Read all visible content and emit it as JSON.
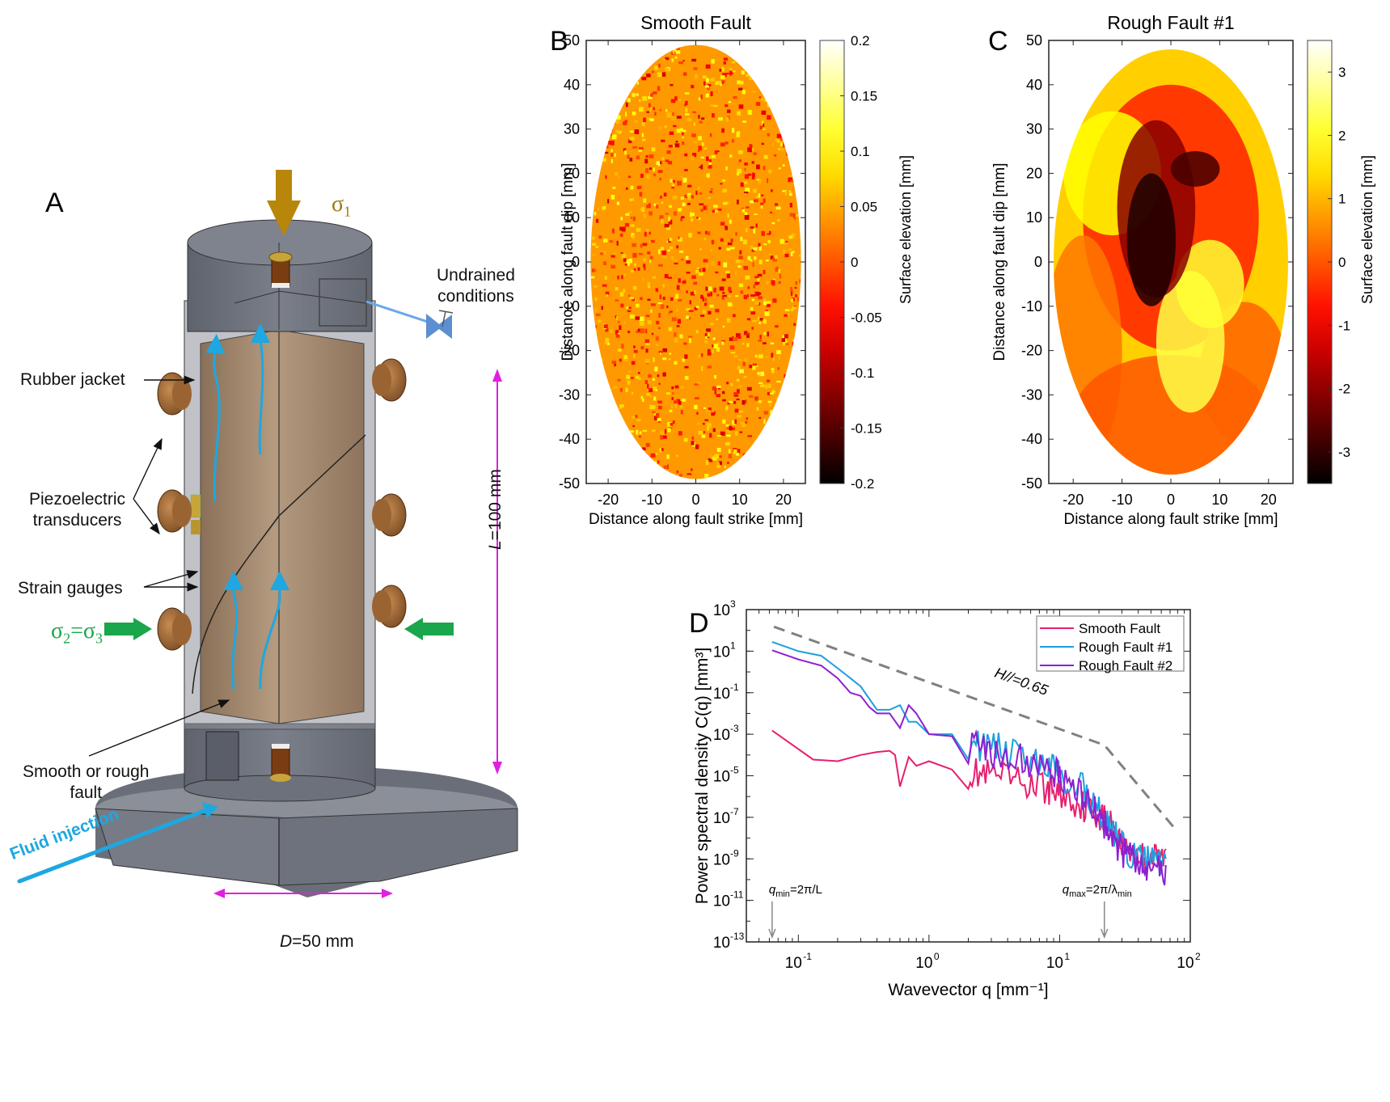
{
  "figure": {
    "panels": [
      "A",
      "B",
      "C",
      "D"
    ]
  },
  "panel_a": {
    "letter": "A",
    "sigma1_symbol": "σ",
    "sigma1_sub": "1",
    "sigma23_text": "σ",
    "sigma23_sub2": "2",
    "sigma23_eq": "=σ",
    "sigma23_sub3": "3",
    "undrained_line1": "Undrained",
    "undrained_line2": "conditions",
    "rubber_jacket": "Rubber jacket",
    "piezo_line1": "Piezoelectric",
    "piezo_line2": "transducers",
    "strain_gauges": "Strain gauges",
    "fault_line1": "Smooth or rough",
    "fault_line2": "fault",
    "fluid_injection": "Fluid injection",
    "length_label_var": "L",
    "length_label_val": "=100 mm",
    "diameter_label_var": "D",
    "diameter_label_val": "=50 mm",
    "colors": {
      "sigma1": "#b8860b",
      "sigma23": "#1aa64a",
      "fluid": "#1ea7e1",
      "dimension": "#e020e0",
      "rock": "#a08466",
      "steel": "#707480"
    }
  },
  "chart_data": [
    {
      "type": "heatmap",
      "panel": "B",
      "title": "Smooth Fault",
      "xlabel": "Distance along fault strike [mm]",
      "ylabel": "Distance along fault dip [mm]",
      "xlim": [
        -25,
        25
      ],
      "ylim": [
        -50,
        50
      ],
      "xticks": [
        -20,
        -10,
        0,
        10,
        20
      ],
      "yticks": [
        -50,
        -40,
        -30,
        -20,
        -10,
        0,
        10,
        20,
        30,
        40,
        50
      ],
      "colorbar": {
        "label": "Surface elevation [mm]",
        "range": [
          -0.2,
          0.2
        ],
        "ticks": [
          "0.2",
          "0.15",
          "0.1",
          "0.05",
          "0",
          "-0.05",
          "-0.1",
          "-0.15",
          "-0.2"
        ],
        "colormap": "hot"
      },
      "shape": "ellipse",
      "ellipse_semi_axes_mm": [
        24,
        49
      ],
      "description": "Fine-grained random texture, mostly orange/yellow (~0 to 0.1 mm) with scattered dark red spots"
    },
    {
      "type": "heatmap",
      "panel": "C",
      "title": "Rough Fault #1",
      "xlabel": "Distance along fault strike [mm]",
      "ylabel": "Distance along fault dip [mm]",
      "xlim": [
        -25,
        25
      ],
      "ylim": [
        -50,
        50
      ],
      "xticks": [
        -20,
        -10,
        0,
        10,
        20
      ],
      "yticks": [
        -50,
        -40,
        -30,
        -20,
        -10,
        0,
        10,
        20,
        30,
        40,
        50
      ],
      "colorbar": {
        "label": "Surface elevation [mm]",
        "range": [
          -3.5,
          3.5
        ],
        "ticks": [
          "3",
          "2",
          "1",
          "0",
          "-1",
          "-2",
          "-3"
        ],
        "colormap": "hot"
      },
      "shape": "ellipse",
      "ellipse_semi_axes_mm": [
        24,
        48
      ],
      "description": "Large-scale topography: dark depression (~-3 mm) centered near x=-3, y=10; bright high ridge from (0,-25) toward (8,5); yellow margins"
    },
    {
      "type": "line",
      "panel": "D",
      "title": "",
      "xlabel": "Wavevector q [mm-1]",
      "ylabel": "Power spectral density C(q) [mm3]",
      "xscale": "log",
      "yscale": "log",
      "xlim": [
        0.04,
        100
      ],
      "ylim": [
        1e-13,
        1000
      ],
      "xticks": [
        "10-1",
        "100",
        "101",
        "102"
      ],
      "yticks": [
        "103",
        "101",
        "10-1",
        "10-3",
        "10-5",
        "10-7",
        "10-9",
        "10-11",
        "10-13"
      ],
      "legend": [
        "Smooth Fault",
        "Rough Fault #1",
        "Rough Fault #2"
      ],
      "legend_position": "top-right",
      "series": [
        {
          "name": "Smooth Fault",
          "color": "#e6206f",
          "x": [
            0.063,
            0.13,
            0.2,
            0.3,
            0.4,
            0.5,
            0.55,
            0.6,
            0.7,
            0.8,
            1.0,
            1.5,
            2,
            3,
            5,
            8,
            10,
            15,
            20,
            25,
            30,
            40,
            50,
            65
          ],
          "y": [
            0.0015,
            6e-05,
            5e-05,
            0.0001,
            0.00014,
            0.00016,
            0.0001,
            3e-06,
            8e-05,
            3e-05,
            5e-05,
            2e-05,
            3e-05,
            2e-05,
            1e-05,
            5e-06,
            3e-06,
            8e-07,
            3e-07,
            8e-08,
            1e-08,
            3e-09,
            2e-09,
            3e-09
          ]
        },
        {
          "name": "Rough Fault #1",
          "color": "#1e9fe0",
          "x": [
            0.063,
            0.1,
            0.15,
            0.2,
            0.25,
            0.3,
            0.35,
            0.4,
            0.5,
            0.6,
            0.7,
            0.8,
            1.0,
            1.5,
            2,
            3,
            5,
            8,
            10,
            15,
            20,
            25,
            30,
            40,
            50,
            65
          ],
          "y": [
            28,
            10,
            6,
            1.5,
            0.5,
            0.2,
            0.05,
            0.015,
            0.015,
            0.025,
            0.004,
            0.004,
            0.001,
            0.001,
            0.0008,
            0.0005,
            0.0002,
            7e-05,
            3e-05,
            5e-06,
            5e-07,
            5e-08,
            8e-09,
            2e-09,
            2e-09,
            1e-09
          ]
        },
        {
          "name": "Rough Fault #2",
          "color": "#8e1fd0",
          "x": [
            0.063,
            0.1,
            0.15,
            0.2,
            0.25,
            0.3,
            0.35,
            0.4,
            0.5,
            0.6,
            0.7,
            0.8,
            1.0,
            1.5,
            2,
            3,
            5,
            8,
            10,
            15,
            20,
            25,
            30,
            40,
            50,
            65
          ],
          "y": [
            11,
            4,
            2,
            0.5,
            0.1,
            0.07,
            0.02,
            0.01,
            0.01,
            0.002,
            0.025,
            0.01,
            0.001,
            0.0008,
            0.0005,
            0.0003,
            0.00015,
            5e-05,
            2e-05,
            3e-06,
            3e-07,
            3e-08,
            5e-09,
            1e-09,
            1e-09,
            5e-10
          ]
        }
      ],
      "reference_line": {
        "label_var": "H",
        "label_sub": "//",
        "label_val": "=0.65",
        "color": "#808080",
        "style": "dashed",
        "x": [
          0.065,
          22,
          80
        ],
        "y": [
          150,
          0.0003,
          2e-08
        ]
      },
      "annotations": [
        {
          "text_var": "q",
          "text_sub": "min",
          "text_rest": "=2π/L",
          "x": 0.063
        },
        {
          "text_var": "q",
          "text_sub": "max",
          "text_rest": "=2π/λ",
          "text_sub2": "min",
          "x": 22
        }
      ]
    }
  ]
}
